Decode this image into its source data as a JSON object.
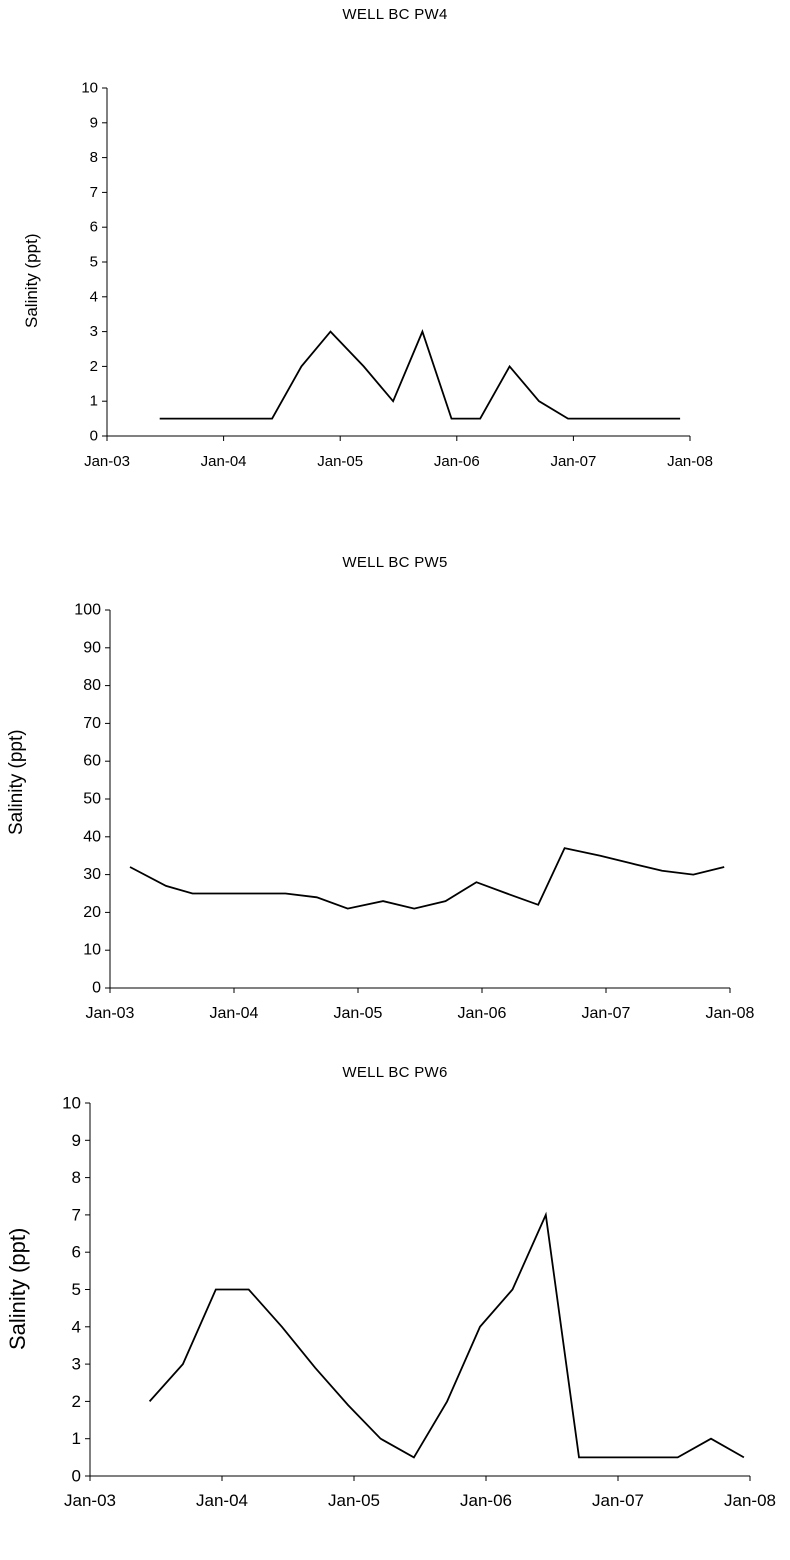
{
  "chart_data": [
    {
      "type": "line",
      "title": "WELL BC PW4",
      "ylabel": "Salinity (ppt)",
      "xlabel": "",
      "xlim": [
        "2003-01-01",
        "2008-01-01"
      ],
      "xticks": [
        "Jan-03",
        "Jan-04",
        "Jan-05",
        "Jan-06",
        "Jan-07",
        "Jan-08"
      ],
      "ylim": [
        0,
        10
      ],
      "yticks": [
        0,
        1,
        2,
        3,
        4,
        5,
        6,
        7,
        8,
        9,
        10
      ],
      "grid": false,
      "series": [
        {
          "x": [
            "2003-06-15",
            "2004-06-01",
            "2004-09-01",
            "2004-12-01",
            "2005-03-15",
            "2005-06-15",
            "2005-09-15",
            "2005-12-15",
            "2006-03-15",
            "2006-06-15",
            "2006-09-15",
            "2006-12-15",
            "2007-12-01"
          ],
          "y": [
            0.5,
            0.5,
            2,
            3,
            2,
            1,
            3,
            0.5,
            0.5,
            2,
            1,
            0.5,
            0.5
          ]
        }
      ]
    },
    {
      "type": "line",
      "title": "WELL BC PW5",
      "ylabel": "Salinity (ppt)",
      "xlabel": "",
      "xlim": [
        "2003-01-01",
        "2008-01-01"
      ],
      "xticks": [
        "Jan-03",
        "Jan-04",
        "Jan-05",
        "Jan-06",
        "Jan-07",
        "Jan-08"
      ],
      "ylim": [
        0,
        100
      ],
      "yticks": [
        0,
        10,
        20,
        30,
        40,
        50,
        60,
        70,
        80,
        90,
        100
      ],
      "grid": false,
      "series": [
        {
          "x": [
            "2003-03-01",
            "2003-06-15",
            "2003-09-01",
            "2004-06-01",
            "2004-09-01",
            "2004-12-01",
            "2005-03-15",
            "2005-06-15",
            "2005-09-15",
            "2005-12-15",
            "2006-03-15",
            "2006-06-15",
            "2006-09-01",
            "2006-12-15",
            "2007-03-15",
            "2007-06-15",
            "2007-09-15",
            "2007-12-15"
          ],
          "y": [
            32,
            27,
            25,
            25,
            24,
            21,
            23,
            21,
            23,
            28,
            25,
            22,
            37,
            35,
            33,
            31,
            30,
            32
          ]
        }
      ]
    },
    {
      "type": "line",
      "title": "WELL BC PW6",
      "ylabel": "Salinity (ppt)",
      "xlabel": "",
      "xlim": [
        "2003-01-01",
        "2008-01-01"
      ],
      "xticks": [
        "Jan-03",
        "Jan-04",
        "Jan-05",
        "Jan-06",
        "Jan-07",
        "Jan-08"
      ],
      "ylim": [
        0,
        10
      ],
      "yticks": [
        0,
        1,
        2,
        3,
        4,
        5,
        6,
        7,
        8,
        9,
        10
      ],
      "grid": false,
      "series": [
        {
          "x": [
            "2003-06-15",
            "2003-09-15",
            "2003-12-15",
            "2004-03-15",
            "2004-06-15",
            "2004-09-15",
            "2004-12-15",
            "2005-03-15",
            "2005-06-15",
            "2005-09-15",
            "2005-12-15",
            "2006-03-15",
            "2006-06-15",
            "2006-09-15",
            "2006-12-15",
            "2007-03-15",
            "2007-06-15",
            "2007-09-15",
            "2007-12-15"
          ],
          "y": [
            2,
            3,
            5,
            5,
            4,
            2.9,
            1.9,
            1,
            0.5,
            2,
            4,
            5,
            7,
            0.5,
            0.5,
            0.5,
            0.5,
            1,
            0.5
          ]
        }
      ]
    }
  ]
}
